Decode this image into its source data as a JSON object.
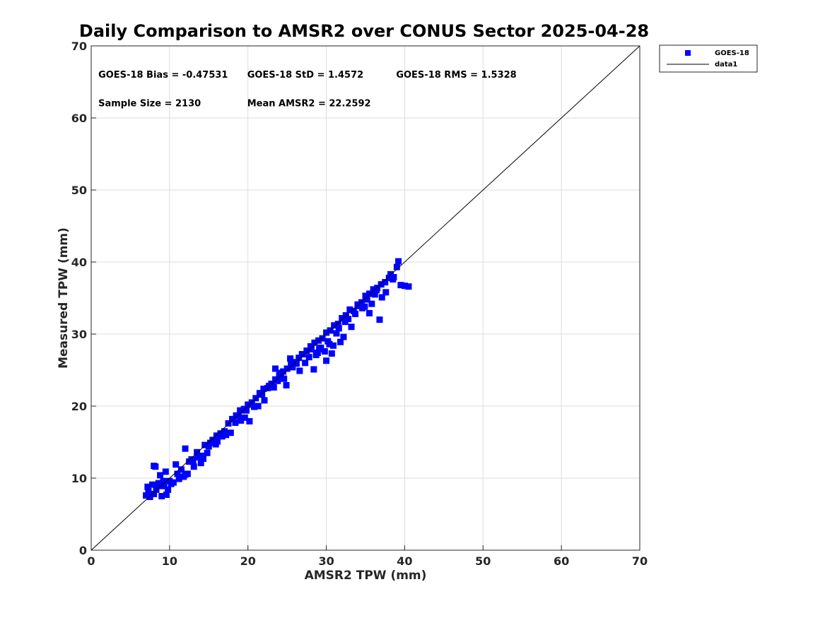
{
  "chart_data": {
    "type": "scatter",
    "title": "Daily Comparison to AMSR2 over CONUS Sector 2025-04-28",
    "xlabel": "AMSR2 TPW (mm)",
    "ylabel": "Measured TPW (mm)",
    "xlim": [
      0,
      70
    ],
    "ylim": [
      0,
      70
    ],
    "xticks": [
      "0",
      "10",
      "20",
      "30",
      "40",
      "50",
      "60",
      "70"
    ],
    "yticks": [
      "0",
      "10",
      "20",
      "30",
      "40",
      "50",
      "60",
      "70"
    ],
    "grid": true,
    "legend": {
      "placement": "outside-top-right",
      "entries": [
        {
          "name": "GOES-18",
          "marker": "square",
          "color": "#0000ff"
        },
        {
          "name": "data1",
          "marker": "line",
          "color": "#000000"
        }
      ]
    },
    "annotations": [
      {
        "text": "GOES-18 Bias = -0.47531",
        "x": 1,
        "y": 66
      },
      {
        "text": "GOES-18 StD = 1.4572",
        "x": 20,
        "y": 66
      },
      {
        "text": "GOES-18 RMS = 1.5328",
        "x": 39,
        "y": 66
      },
      {
        "text": "Sample Size = 2130",
        "x": 1,
        "y": 62
      },
      {
        "text": "Mean AMSR2 = 22.2592",
        "x": 20,
        "y": 62
      }
    ],
    "series": [
      {
        "name": "GOES-18",
        "marker": "square",
        "color": "#0000ff",
        "x": [
          7.0,
          7.2,
          7.5,
          7.8,
          8.0,
          8.3,
          8.6,
          9.0,
          9.3,
          9.6,
          10.0,
          8.2,
          8.8,
          7.3,
          9.8,
          10.5,
          11.0,
          11.5,
          12.0,
          12.5,
          13.0,
          13.5,
          14.0,
          14.5,
          15.0,
          15.5,
          16.0,
          16.5,
          17.0,
          17.5,
          18.0,
          18.5,
          19.0,
          19.5,
          20.0,
          20.5,
          21.0,
          21.5,
          22.0,
          22.5,
          23.0,
          23.5,
          24.0,
          24.5,
          25.0,
          25.5,
          26.0,
          26.5,
          27.0,
          27.5,
          28.0,
          28.5,
          29.0,
          29.5,
          30.0,
          30.5,
          31.0,
          31.5,
          32.0,
          32.5,
          33.0,
          33.5,
          34.0,
          34.5,
          35.0,
          35.5,
          36.0,
          36.5,
          37.0,
          37.5,
          38.0,
          38.5,
          39.0,
          39.5,
          40.0,
          40.5,
          8.5,
          9.2,
          11.2,
          12.3,
          13.6,
          14.8,
          15.9,
          17.2,
          18.4,
          19.6,
          20.8,
          22.1,
          23.3,
          24.6,
          25.7,
          26.9,
          28.1,
          29.3,
          30.4,
          31.6,
          32.8,
          34.1,
          35.2,
          36.4,
          37.6,
          10.2,
          11.8,
          13.1,
          14.3,
          16.1,
          17.8,
          19.1,
          21.3,
          22.7,
          24.2,
          25.4,
          26.2,
          27.3,
          28.7,
          29.8,
          30.9,
          31.8,
          33.2,
          34.6,
          35.8,
          37.1,
          38.6,
          12.8,
          15.2,
          18.8,
          21.8,
          23.8,
          26.6,
          27.8,
          29.1,
          30.2,
          31.3,
          32.4,
          33.7,
          34.9,
          36.2,
          39.2,
          9.5,
          10.8,
          14.0,
          16.7,
          19.8,
          20.2,
          24.9,
          28.4,
          30.7,
          32.2,
          35.5,
          23.5,
          28.9,
          30.0,
          36.8,
          38.2,
          8.0,
          12.0
        ],
        "y": [
          7.6,
          8.8,
          7.4,
          9.1,
          7.8,
          8.4,
          9.3,
          7.5,
          8.9,
          7.7,
          9.6,
          11.6,
          10.4,
          8.2,
          8.4,
          9.4,
          10.6,
          11.2,
          10.5,
          12.3,
          12.4,
          13.6,
          13.1,
          14.6,
          14.4,
          15.3,
          15.9,
          16.2,
          16.5,
          17.6,
          18.2,
          18.7,
          19.4,
          19.6,
          20.2,
          20.5,
          21.1,
          21.8,
          22.4,
          22.5,
          23.1,
          23.7,
          24.3,
          24.8,
          25.2,
          25.8,
          26.1,
          26.7,
          27.2,
          27.7,
          28.3,
          28.8,
          29.1,
          29.4,
          30.2,
          30.5,
          31.2,
          31.4,
          32.2,
          32.6,
          33.4,
          33.2,
          34.1,
          34.4,
          35.3,
          35.6,
          36.2,
          36.4,
          36.9,
          37.2,
          37.8,
          37.6,
          39.3,
          36.8,
          36.7,
          36.6,
          8.9,
          9.6,
          9.9,
          10.6,
          12.9,
          13.5,
          14.7,
          16.0,
          17.7,
          18.4,
          19.9,
          20.8,
          22.6,
          23.8,
          25.4,
          27.2,
          27.9,
          28.1,
          28.6,
          30.8,
          32.1,
          33.9,
          34.8,
          36.1,
          35.8,
          9.2,
          10.2,
          11.6,
          12.7,
          15.1,
          16.3,
          18.0,
          20.0,
          22.8,
          24.6,
          26.6,
          25.9,
          26.0,
          27.1,
          27.6,
          28.4,
          28.9,
          31.0,
          33.6,
          34.2,
          35.1,
          37.9,
          12.6,
          14.9,
          18.6,
          21.6,
          23.5,
          24.9,
          26.8,
          27.9,
          29.0,
          30.1,
          31.7,
          32.8,
          33.8,
          35.5,
          40.1,
          10.9,
          11.9,
          12.1,
          15.8,
          19.4,
          17.9,
          22.9,
          25.1,
          27.3,
          29.6,
          32.9,
          25.2,
          27.4,
          26.3,
          32.0,
          38.3,
          11.7,
          14.1
        ]
      },
      {
        "name": "data1",
        "marker": "line",
        "color": "#000000",
        "x": [
          0,
          70
        ],
        "y": [
          0,
          70
        ]
      }
    ]
  }
}
